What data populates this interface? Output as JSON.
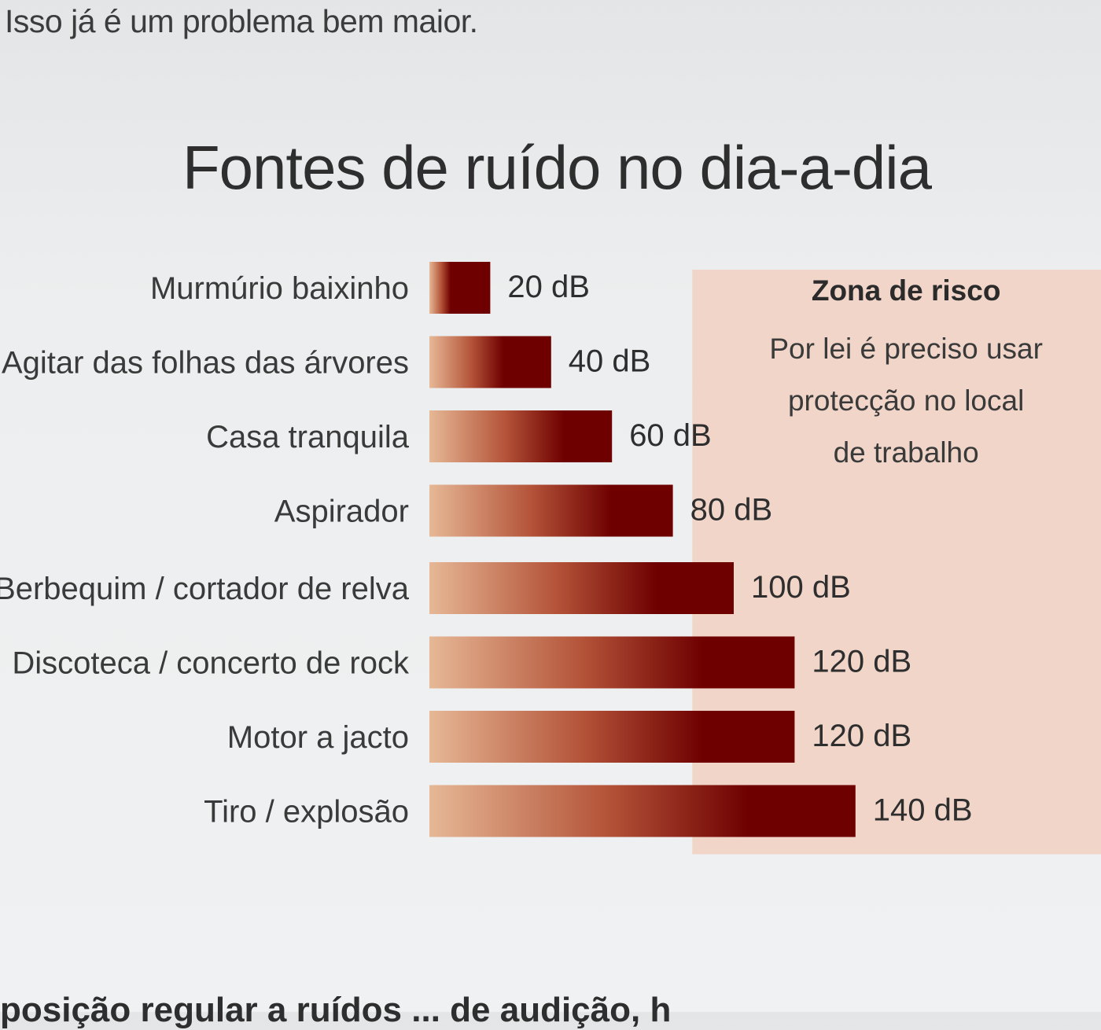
{
  "page": {
    "top_text": "Isso já é um problema bem maior.",
    "bottom_text": "posição regular a ruídos ... de audição, h"
  },
  "chart_data": {
    "type": "bar",
    "orientation": "horizontal",
    "title": "Fontes de ruído no dia-a-dia",
    "unit": "dB",
    "categories": [
      "Murmúrio baixinho",
      "Agitar das folhas das árvores",
      "Casa tranquila",
      "Aspirador",
      "Berbequim / cortador de relva",
      "Discoteca / concerto de rock",
      "Motor a jacto",
      "Tiro / explosão"
    ],
    "values": [
      20,
      40,
      60,
      80,
      100,
      120,
      120,
      140
    ],
    "value_labels": [
      "20 dB",
      "40 dB",
      "60 dB",
      "80 dB",
      "100 dB",
      "120 dB",
      "120 dB",
      "140 dB"
    ],
    "annotation": {
      "title": "Zona de risco",
      "lines": [
        "Por lei é preciso usar",
        "protecção no local",
        "de trabalho"
      ],
      "from_value": 90
    },
    "colors": {
      "bar_light": "#e6b896",
      "bar_mid": "#b5553a",
      "bar_dark": "#6e0000",
      "zone": "#f0d5c8"
    },
    "grid": false,
    "legend": "none"
  }
}
